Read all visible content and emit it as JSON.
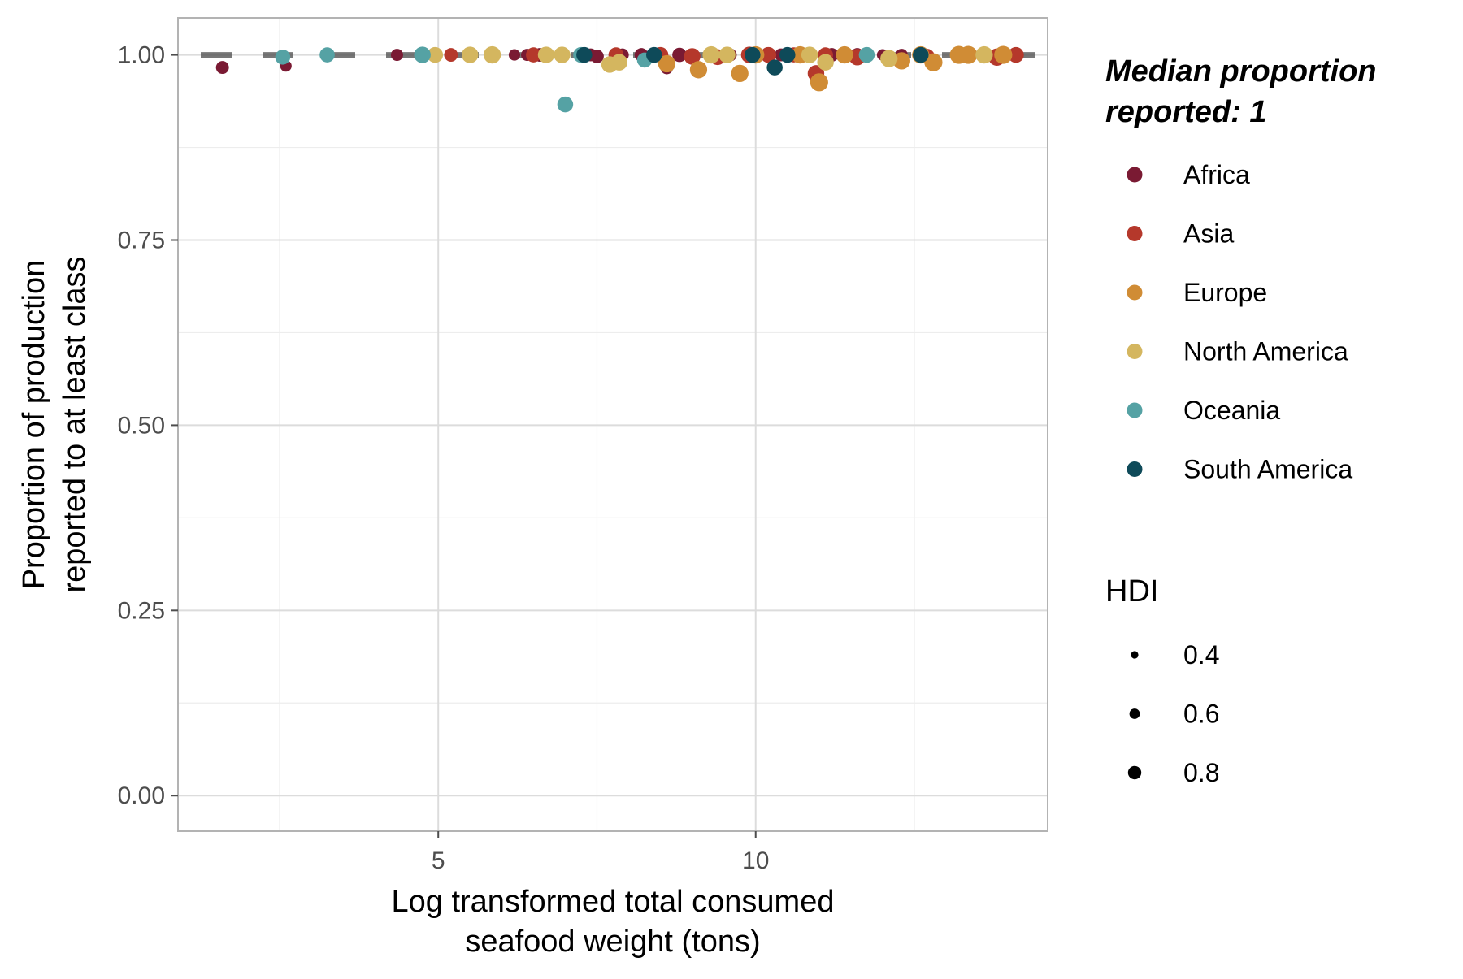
{
  "chart_data": {
    "type": "scatter",
    "title": "",
    "xlabel_lines": [
      "Log transformed total consumed",
      "seafood weight (tons)"
    ],
    "ylabel_lines": [
      "Proportion of production",
      "reported to at least class"
    ],
    "xlim": [
      0.9,
      14.6
    ],
    "ylim": [
      -0.048,
      1.05
    ],
    "x_ticks": [
      5,
      10
    ],
    "x_tick_labels": [
      "5",
      "10"
    ],
    "x_minor_ticks": [
      2.5,
      7.5,
      12.5
    ],
    "y_ticks": [
      0,
      0.25,
      0.5,
      0.75,
      1.0
    ],
    "y_tick_labels": [
      "0.00",
      "0.25",
      "0.50",
      "0.75",
      "1.00"
    ],
    "y_minor_ticks": [
      0.125,
      0.375,
      0.625,
      0.875
    ],
    "grid": true,
    "reference_line": {
      "y": 1.0,
      "style": "dashed",
      "color": "#555555"
    },
    "legend": {
      "position": "right",
      "color_title_lines": [
        "Median proportion",
        "reported: 1"
      ],
      "size_title": "HDI",
      "size_entries": [
        {
          "label": "0.4",
          "value": 0.4
        },
        {
          "label": "0.6",
          "value": 0.6
        },
        {
          "label": "0.8",
          "value": 0.8
        }
      ]
    },
    "series": [
      {
        "name": "Africa",
        "color": "#7a1a33",
        "points": [
          {
            "x": 1.6,
            "y": 0.983,
            "hdi": 0.55
          },
          {
            "x": 2.6,
            "y": 0.985,
            "hdi": 0.45
          },
          {
            "x": 4.35,
            "y": 1.0,
            "hdi": 0.5
          },
          {
            "x": 6.2,
            "y": 1.0,
            "hdi": 0.45
          },
          {
            "x": 6.4,
            "y": 1.0,
            "hdi": 0.5
          },
          {
            "x": 6.6,
            "y": 1.0,
            "hdi": 0.6
          },
          {
            "x": 7.4,
            "y": 1.0,
            "hdi": 0.55
          },
          {
            "x": 7.5,
            "y": 0.998,
            "hdi": 0.6
          },
          {
            "x": 7.9,
            "y": 1.0,
            "hdi": 0.55
          },
          {
            "x": 8.2,
            "y": 1.0,
            "hdi": 0.6
          },
          {
            "x": 8.6,
            "y": 0.982,
            "hdi": 0.5
          },
          {
            "x": 8.8,
            "y": 1.0,
            "hdi": 0.65
          },
          {
            "x": 9.6,
            "y": 1.0,
            "hdi": 0.55
          },
          {
            "x": 10.4,
            "y": 1.0,
            "hdi": 0.55
          },
          {
            "x": 11.2,
            "y": 1.0,
            "hdi": 0.6
          },
          {
            "x": 11.6,
            "y": 1.0,
            "hdi": 0.6
          },
          {
            "x": 12.0,
            "y": 1.0,
            "hdi": 0.45
          },
          {
            "x": 12.3,
            "y": 1.0,
            "hdi": 0.5
          }
        ]
      },
      {
        "name": "Asia",
        "color": "#b5382b",
        "points": [
          {
            "x": 5.2,
            "y": 1.0,
            "hdi": 0.6
          },
          {
            "x": 6.5,
            "y": 1.0,
            "hdi": 0.7
          },
          {
            "x": 7.8,
            "y": 1.0,
            "hdi": 0.7
          },
          {
            "x": 8.5,
            "y": 1.0,
            "hdi": 0.75
          },
          {
            "x": 9.0,
            "y": 0.998,
            "hdi": 0.8
          },
          {
            "x": 9.4,
            "y": 0.997,
            "hdi": 0.75
          },
          {
            "x": 9.9,
            "y": 1.0,
            "hdi": 0.8
          },
          {
            "x": 10.2,
            "y": 1.0,
            "hdi": 0.75
          },
          {
            "x": 10.6,
            "y": 1.0,
            "hdi": 0.7
          },
          {
            "x": 10.95,
            "y": 0.975,
            "hdi": 0.8
          },
          {
            "x": 11.1,
            "y": 1.0,
            "hdi": 0.7
          },
          {
            "x": 11.6,
            "y": 0.997,
            "hdi": 0.8
          },
          {
            "x": 12.7,
            "y": 0.998,
            "hdi": 0.7
          },
          {
            "x": 13.8,
            "y": 0.997,
            "hdi": 0.85
          },
          {
            "x": 14.1,
            "y": 1.0,
            "hdi": 0.75
          }
        ]
      },
      {
        "name": "Europe",
        "color": "#d08c35",
        "points": [
          {
            "x": 8.6,
            "y": 0.988,
            "hdi": 0.85
          },
          {
            "x": 9.1,
            "y": 0.98,
            "hdi": 0.85
          },
          {
            "x": 9.75,
            "y": 0.975,
            "hdi": 0.85
          },
          {
            "x": 10.0,
            "y": 1.0,
            "hdi": 0.85
          },
          {
            "x": 10.7,
            "y": 1.0,
            "hdi": 0.85
          },
          {
            "x": 11.0,
            "y": 0.963,
            "hdi": 0.9
          },
          {
            "x": 11.4,
            "y": 1.0,
            "hdi": 0.85
          },
          {
            "x": 12.3,
            "y": 0.992,
            "hdi": 0.85
          },
          {
            "x": 12.6,
            "y": 1.0,
            "hdi": 0.85
          },
          {
            "x": 12.8,
            "y": 0.99,
            "hdi": 0.9
          },
          {
            "x": 13.2,
            "y": 1.0,
            "hdi": 0.9
          },
          {
            "x": 13.35,
            "y": 1.0,
            "hdi": 0.9
          },
          {
            "x": 13.9,
            "y": 1.0,
            "hdi": 0.9
          }
        ]
      },
      {
        "name": "North America",
        "color": "#d4b65f",
        "points": [
          {
            "x": 4.95,
            "y": 1.0,
            "hdi": 0.75
          },
          {
            "x": 5.5,
            "y": 1.0,
            "hdi": 0.8
          },
          {
            "x": 5.85,
            "y": 1.0,
            "hdi": 0.85
          },
          {
            "x": 6.7,
            "y": 1.0,
            "hdi": 0.8
          },
          {
            "x": 6.95,
            "y": 1.0,
            "hdi": 0.8
          },
          {
            "x": 7.7,
            "y": 0.987,
            "hdi": 0.8
          },
          {
            "x": 7.85,
            "y": 0.99,
            "hdi": 0.8
          },
          {
            "x": 9.3,
            "y": 1.0,
            "hdi": 0.85
          },
          {
            "x": 9.55,
            "y": 1.0,
            "hdi": 0.8
          },
          {
            "x": 10.85,
            "y": 1.0,
            "hdi": 0.8
          },
          {
            "x": 11.1,
            "y": 0.99,
            "hdi": 0.8
          },
          {
            "x": 12.1,
            "y": 0.995,
            "hdi": 0.85
          },
          {
            "x": 13.6,
            "y": 1.0,
            "hdi": 0.85
          }
        ]
      },
      {
        "name": "Oceania",
        "color": "#55a2a4",
        "points": [
          {
            "x": 2.55,
            "y": 0.997,
            "hdi": 0.7
          },
          {
            "x": 3.25,
            "y": 1.0,
            "hdi": 0.7
          },
          {
            "x": 4.75,
            "y": 1.0,
            "hdi": 0.8
          },
          {
            "x": 7.0,
            "y": 0.933,
            "hdi": 0.75
          },
          {
            "x": 7.25,
            "y": 1.0,
            "hdi": 0.75
          },
          {
            "x": 8.25,
            "y": 0.993,
            "hdi": 0.7
          },
          {
            "x": 11.75,
            "y": 1.0,
            "hdi": 0.75
          }
        ]
      },
      {
        "name": "South America",
        "color": "#0e4a59",
        "points": [
          {
            "x": 7.3,
            "y": 1.0,
            "hdi": 0.75
          },
          {
            "x": 8.4,
            "y": 1.0,
            "hdi": 0.75
          },
          {
            "x": 9.95,
            "y": 1.0,
            "hdi": 0.75
          },
          {
            "x": 10.3,
            "y": 0.983,
            "hdi": 0.75
          },
          {
            "x": 10.5,
            "y": 1.0,
            "hdi": 0.75
          },
          {
            "x": 12.6,
            "y": 1.0,
            "hdi": 0.75
          }
        ]
      }
    ]
  }
}
